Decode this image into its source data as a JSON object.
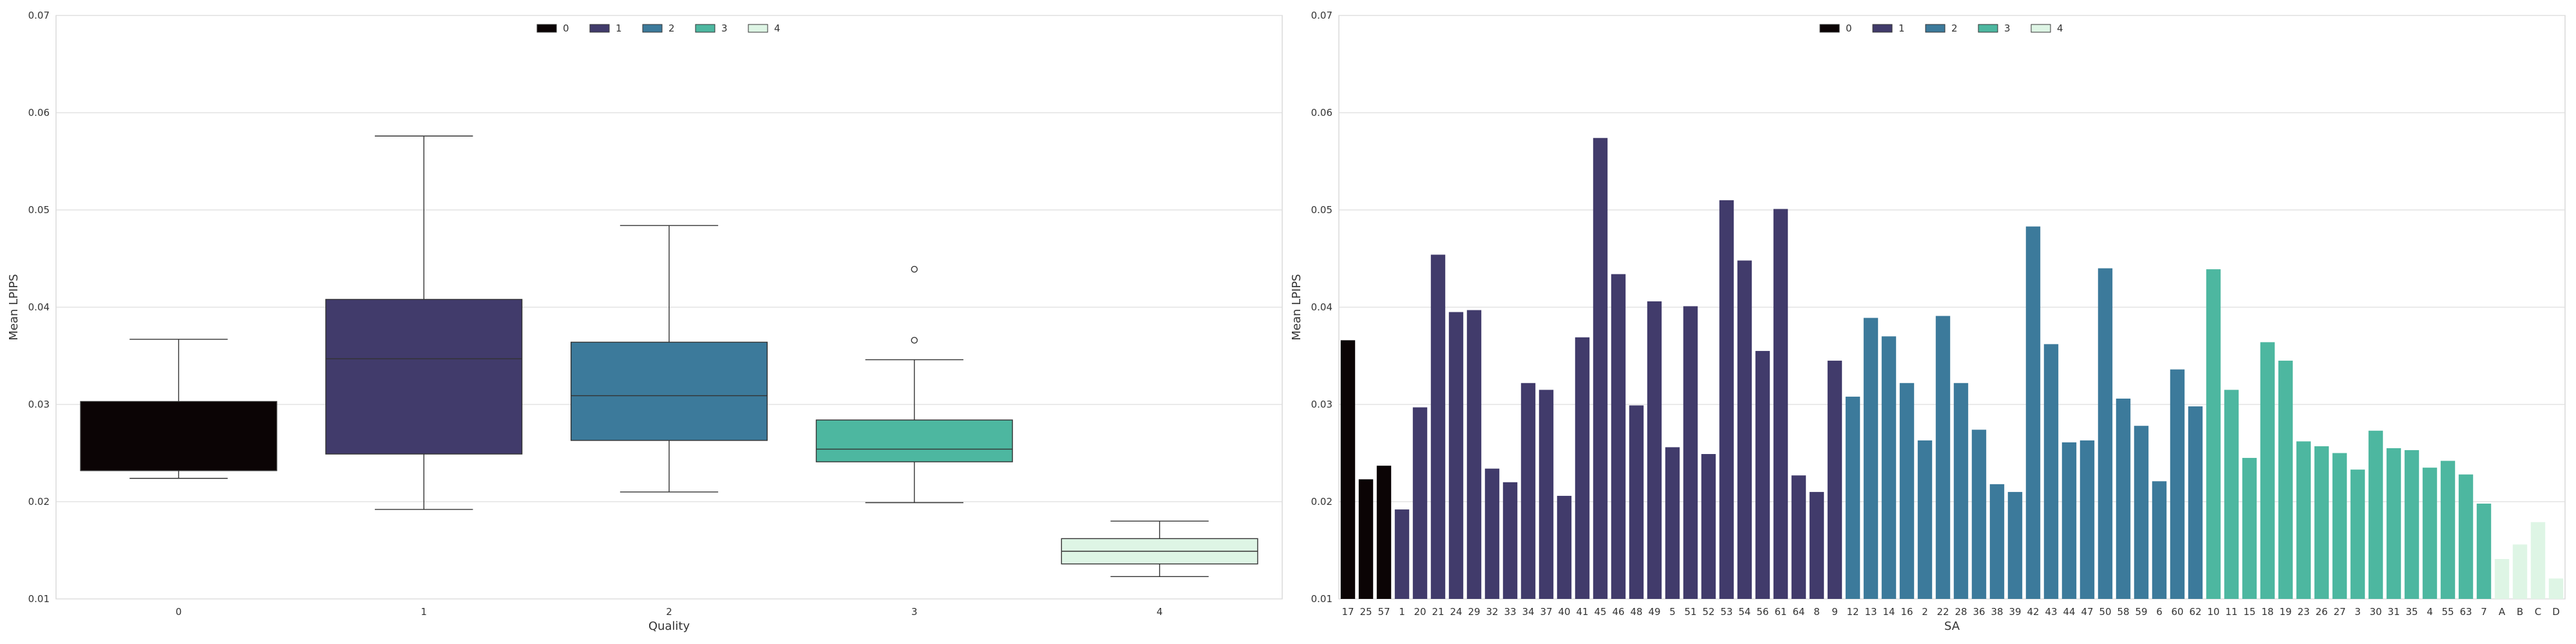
{
  "chart_data": [
    {
      "type": "box",
      "title": "",
      "xlabel": "Quality",
      "ylabel": "Mean LPIPS",
      "ylim": [
        0.01,
        0.07
      ],
      "yticks": [
        "0.01",
        "0.02",
        "0.03",
        "0.04",
        "0.05",
        "0.06",
        "0.07"
      ],
      "grid": "horizontal",
      "legend": {
        "placement": "top-center",
        "entries": [
          {
            "label": "0",
            "color": "#0b0405"
          },
          {
            "label": "1",
            "color": "#413b6b"
          },
          {
            "label": "2",
            "color": "#3c7a9b"
          },
          {
            "label": "3",
            "color": "#4db7a0"
          },
          {
            "label": "4",
            "color": "#def5e5"
          }
        ]
      },
      "categories": [
        "0",
        "1",
        "2",
        "3",
        "4"
      ],
      "boxes": [
        {
          "category": "0",
          "whisker_low": 0.0224,
          "q1": 0.0232,
          "median": 0.0232,
          "q3": 0.0303,
          "whisker_high": 0.0367,
          "outliers": [],
          "color": "#0b0405"
        },
        {
          "category": "1",
          "whisker_low": 0.0192,
          "q1": 0.0249,
          "median": 0.0347,
          "q3": 0.0408,
          "whisker_high": 0.0576,
          "outliers": [],
          "color": "#413b6b"
        },
        {
          "category": "2",
          "whisker_low": 0.021,
          "q1": 0.0263,
          "median": 0.0309,
          "q3": 0.0364,
          "whisker_high": 0.0484,
          "outliers": [],
          "color": "#3c7a9b"
        },
        {
          "category": "3",
          "whisker_low": 0.0199,
          "q1": 0.0241,
          "median": 0.0254,
          "q3": 0.0284,
          "whisker_high": 0.0346,
          "outliers": [
            0.0366,
            0.0439
          ],
          "color": "#4db7a0"
        },
        {
          "category": "4",
          "whisker_low": 0.0123,
          "q1": 0.0136,
          "median": 0.0149,
          "q3": 0.0162,
          "whisker_high": 0.018,
          "outliers": [],
          "color": "#def5e5"
        }
      ]
    },
    {
      "type": "bar",
      "title": "",
      "xlabel": "SA",
      "ylabel": "Mean LPIPS",
      "ylim": [
        0.01,
        0.07
      ],
      "yticks": [
        "0.01",
        "0.02",
        "0.03",
        "0.04",
        "0.05",
        "0.06",
        "0.07"
      ],
      "grid": "horizontal",
      "legend": {
        "placement": "top-center",
        "entries": [
          {
            "label": "0",
            "color": "#0b0405"
          },
          {
            "label": "1",
            "color": "#413b6b"
          },
          {
            "label": "2",
            "color": "#3c7a9b"
          },
          {
            "label": "3",
            "color": "#4db7a0"
          },
          {
            "label": "4",
            "color": "#def5e5"
          }
        ]
      },
      "categories": [
        "17",
        "25",
        "57",
        "1",
        "20",
        "21",
        "24",
        "29",
        "32",
        "33",
        "34",
        "37",
        "40",
        "41",
        "45",
        "46",
        "48",
        "49",
        "5",
        "51",
        "52",
        "53",
        "54",
        "56",
        "61",
        "64",
        "8",
        "9",
        "12",
        "13",
        "14",
        "16",
        "2",
        "22",
        "28",
        "36",
        "38",
        "39",
        "42",
        "43",
        "44",
        "47",
        "50",
        "58",
        "59",
        "6",
        "60",
        "62",
        "10",
        "11",
        "15",
        "18",
        "19",
        "23",
        "26",
        "27",
        "3",
        "30",
        "31",
        "35",
        "4",
        "55",
        "63",
        "7",
        "A",
        "B",
        "C",
        "D"
      ],
      "values": [
        0.0366,
        0.0223,
        0.0237,
        0.0192,
        0.0297,
        0.0454,
        0.0395,
        0.0397,
        0.0234,
        0.022,
        0.0322,
        0.0315,
        0.0206,
        0.0369,
        0.0574,
        0.0434,
        0.0299,
        0.0406,
        0.0256,
        0.0401,
        0.0249,
        0.051,
        0.0448,
        0.0355,
        0.0501,
        0.0227,
        0.021,
        0.0345,
        0.0308,
        0.0389,
        0.037,
        0.0322,
        0.0263,
        0.0391,
        0.0322,
        0.0274,
        0.0218,
        0.021,
        0.0483,
        0.0362,
        0.0261,
        0.0263,
        0.044,
        0.0306,
        0.0278,
        0.0221,
        0.0336,
        0.0298,
        0.0439,
        0.0315,
        0.0245,
        0.0364,
        0.0345,
        0.0262,
        0.0257,
        0.025,
        0.0233,
        0.0273,
        0.0255,
        0.0253,
        0.0235,
        0.0242,
        0.0228,
        0.0198,
        0.0141,
        0.0156,
        0.0179,
        0.0121
      ],
      "groups": [
        0,
        0,
        0,
        1,
        1,
        1,
        1,
        1,
        1,
        1,
        1,
        1,
        1,
        1,
        1,
        1,
        1,
        1,
        1,
        1,
        1,
        1,
        1,
        1,
        1,
        1,
        1,
        1,
        2,
        2,
        2,
        2,
        2,
        2,
        2,
        2,
        2,
        2,
        2,
        2,
        2,
        2,
        2,
        2,
        2,
        2,
        2,
        2,
        3,
        3,
        3,
        3,
        3,
        3,
        3,
        3,
        3,
        3,
        3,
        3,
        3,
        3,
        3,
        3,
        4,
        4,
        4,
        4
      ]
    }
  ]
}
